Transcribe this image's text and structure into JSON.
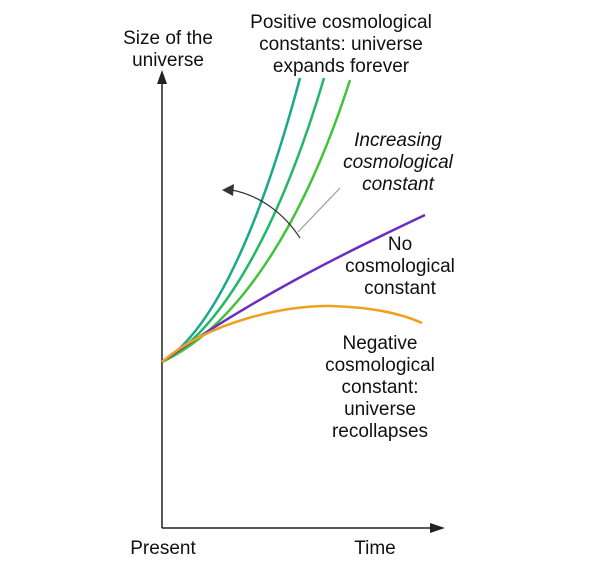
{
  "axes": {
    "y_label": [
      "Size of the",
      "universe"
    ],
    "x_label": "Time",
    "origin_label": "Present"
  },
  "annotations": {
    "positive": [
      "Positive cosmological",
      "constants: universe",
      "expands forever"
    ],
    "increasing": [
      "Increasing",
      "cosmological",
      "constant"
    ],
    "none": [
      "No",
      "cosmological",
      "constant"
    ],
    "negative": [
      "Negative",
      "cosmological",
      "constant:",
      "universe",
      "recollapses"
    ]
  },
  "curves": [
    {
      "id": "positive-large",
      "color": "#1aa88a"
    },
    {
      "id": "positive-medium",
      "color": "#22b866"
    },
    {
      "id": "positive-small",
      "color": "#44c23a"
    },
    {
      "id": "zero",
      "color": "#6a2fc0"
    },
    {
      "id": "negative",
      "color": "#f0a020"
    }
  ],
  "colors": {
    "axis": "#222222",
    "arrow": "#333333",
    "pointer": "#9a9a9a"
  }
}
